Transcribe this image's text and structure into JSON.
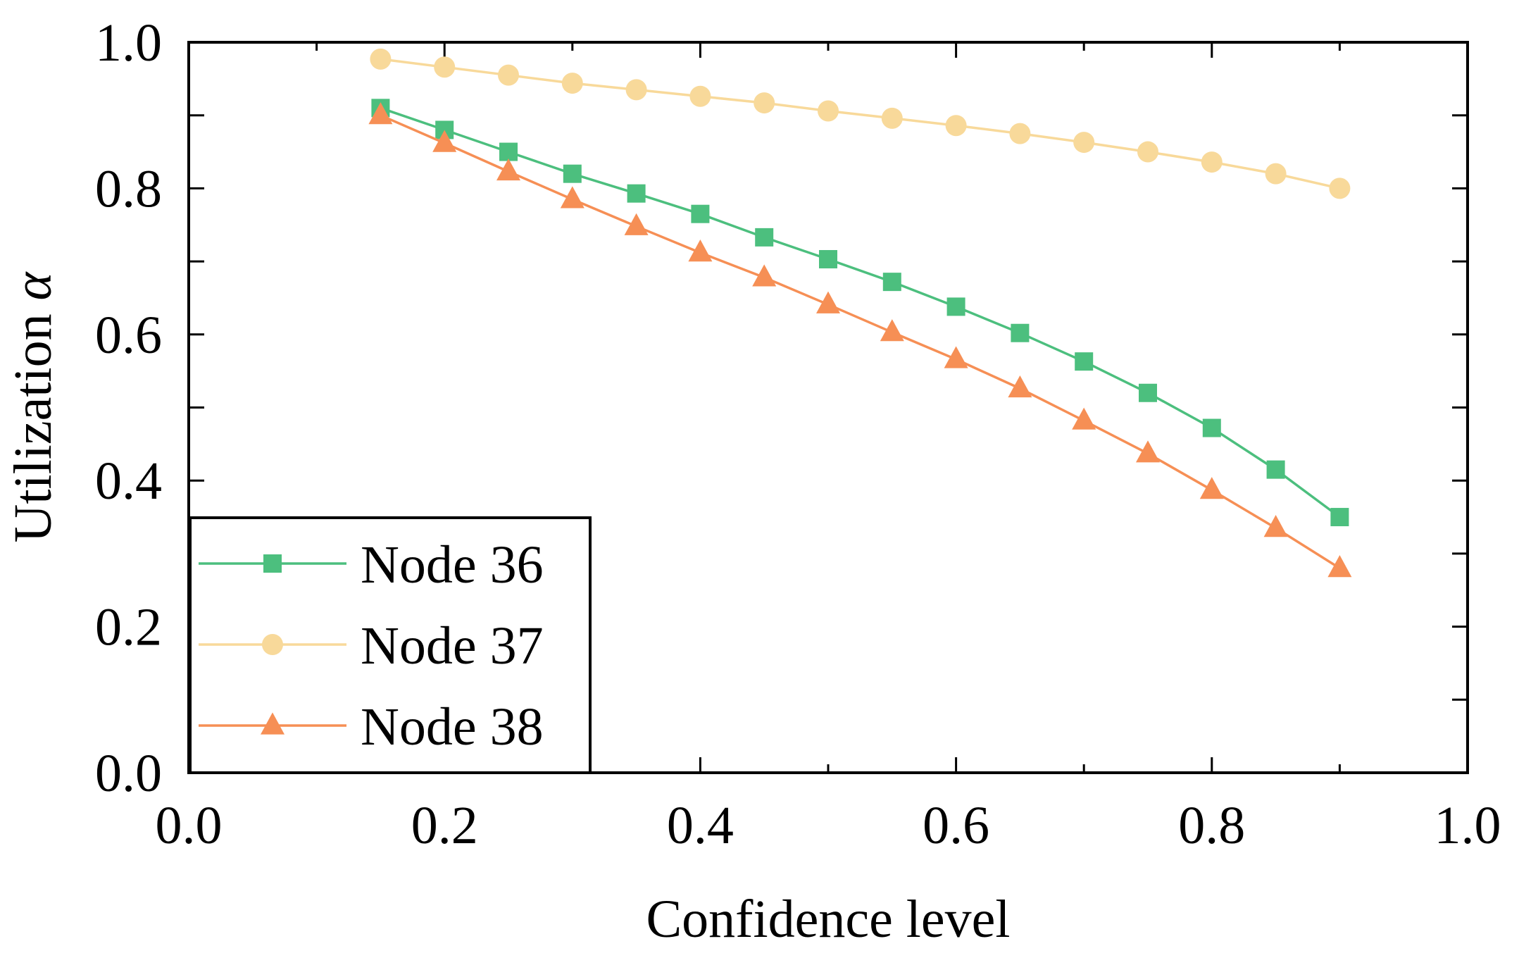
{
  "chart_data": {
    "type": "line",
    "title": "",
    "xlabel": "Confidence level",
    "ylabel": "Utilization",
    "ylabel_symbol": "α",
    "xlim": [
      0.0,
      1.0
    ],
    "ylim": [
      0.0,
      1.0
    ],
    "xticks": [
      "0.0",
      "0.2",
      "0.4",
      "0.6",
      "0.8",
      "1.0"
    ],
    "yticks": [
      "0.0",
      "0.2",
      "0.4",
      "0.6",
      "0.8",
      "1.0"
    ],
    "grid": false,
    "legend_position": "bottom-left",
    "x": [
      0.15,
      0.2,
      0.25,
      0.3,
      0.35,
      0.4,
      0.45,
      0.5,
      0.55,
      0.6,
      0.65,
      0.7,
      0.75,
      0.8,
      0.85,
      0.9
    ],
    "series": [
      {
        "name": "Node 36",
        "color": "#4cbf7e",
        "marker": "square",
        "values": [
          0.91,
          0.88,
          0.85,
          0.82,
          0.793,
          0.765,
          0.733,
          0.703,
          0.672,
          0.638,
          0.602,
          0.563,
          0.52,
          0.472,
          0.415,
          0.35
        ]
      },
      {
        "name": "Node 37",
        "color": "#f8d99a",
        "marker": "circle",
        "values": [
          0.977,
          0.966,
          0.955,
          0.944,
          0.935,
          0.926,
          0.917,
          0.906,
          0.896,
          0.886,
          0.875,
          0.863,
          0.85,
          0.836,
          0.82,
          0.8
        ]
      },
      {
        "name": "Node 38",
        "color": "#f68f55",
        "marker": "triangle",
        "values": [
          0.9,
          0.862,
          0.823,
          0.785,
          0.748,
          0.712,
          0.678,
          0.641,
          0.603,
          0.566,
          0.526,
          0.482,
          0.437,
          0.387,
          0.335,
          0.28
        ]
      }
    ]
  }
}
